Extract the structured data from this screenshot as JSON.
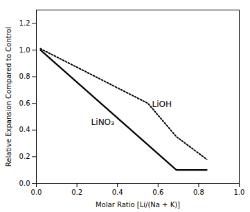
{
  "chart_data": {
    "type": "line",
    "xlabel": "Molar Ratio [Li/(Na + K)]",
    "ylabel": "Relative Expansion Compared to Control",
    "series": [
      {
        "name": "LiNO₃",
        "color": "#000000",
        "line_style": "solid",
        "x": [
          0.02,
          0.69,
          0.84
        ],
        "values": [
          1.0,
          0.1,
          0.1
        ]
      },
      {
        "name": "LiOH",
        "color": "#000000",
        "line_style": "dotted",
        "x": [
          0.02,
          0.55,
          0.69,
          0.84
        ],
        "values": [
          1.01,
          0.6,
          0.35,
          0.18
        ]
      }
    ],
    "annotations": [
      {
        "text": "LiNO₃",
        "x": 0.27,
        "y": 0.44
      },
      {
        "text": "LiOH",
        "x": 0.57,
        "y": 0.57
      }
    ],
    "xlim": [
      0.0,
      1.0
    ],
    "ylim": [
      0.0,
      1.3
    ],
    "xticks": [
      {
        "value": 0,
        "label": "0.0"
      },
      0.2,
      0.4,
      0.6,
      0.8,
      {
        "value": 1,
        "label": "1.0"
      }
    ],
    "yticks": [
      {
        "value": 0,
        "label": "0.0"
      },
      0.2,
      0.4,
      0.6,
      0.8,
      {
        "value": 1,
        "label": "1.0"
      },
      1.2
    ],
    "grid": false
  }
}
